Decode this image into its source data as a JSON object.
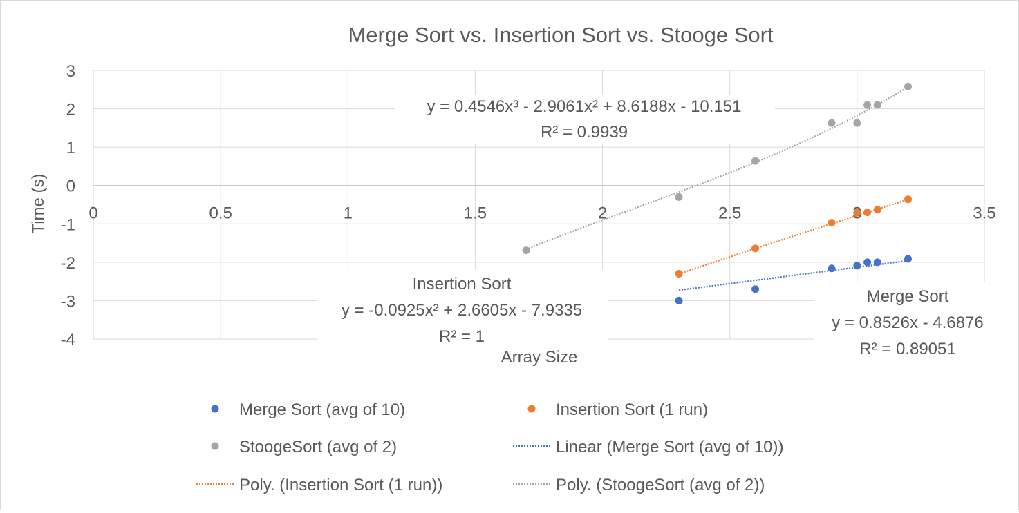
{
  "chart_data": {
    "type": "scatter",
    "title": "Merge Sort vs. Insertion Sort vs. Stooge Sort",
    "xlabel": "Array Size",
    "ylabel": "Time (s)",
    "xlim": [
      0,
      3.5
    ],
    "ylim": [
      -4,
      3
    ],
    "x_ticks": [
      "0",
      "0.5",
      "1",
      "1.5",
      "2",
      "2.5",
      "3",
      "3.5"
    ],
    "y_ticks": [
      "3",
      "2",
      "1",
      "0",
      "-1",
      "-2",
      "-3",
      "-4"
    ],
    "grid": true,
    "legend_position": "bottom",
    "series": [
      {
        "name": "Merge Sort (avg of 10)",
        "color": "#4472C4",
        "points": [
          [
            2.3,
            -3.0
          ],
          [
            2.6,
            -2.7
          ],
          [
            2.9,
            -2.16
          ],
          [
            3.0,
            -2.09
          ],
          [
            3.04,
            -2.0
          ],
          [
            3.08,
            -2.0
          ],
          [
            3.2,
            -1.91
          ]
        ]
      },
      {
        "name": "Insertion Sort (1 run)",
        "color": "#ED7D31",
        "points": [
          [
            2.3,
            -2.3
          ],
          [
            2.6,
            -1.64
          ],
          [
            2.9,
            -0.97
          ],
          [
            3.0,
            -0.71
          ],
          [
            3.04,
            -0.7
          ],
          [
            3.08,
            -0.63
          ],
          [
            3.2,
            -0.36
          ]
        ]
      },
      {
        "name": "StoogeSort (avg of 2)",
        "color": "#A5A5A5",
        "points": [
          [
            1.7,
            -1.69
          ],
          [
            2.3,
            -0.3
          ],
          [
            2.6,
            0.64
          ],
          [
            2.9,
            1.63
          ],
          [
            3.0,
            1.63
          ],
          [
            3.04,
            2.1
          ],
          [
            3.08,
            2.1
          ],
          [
            3.2,
            2.58
          ]
        ]
      }
    ],
    "trendlines": [
      {
        "name": "Linear  (Merge Sort (avg of 10))",
        "color": "#4472C4",
        "kind": "linear",
        "coefficients": [
          0.8526,
          -4.6876
        ],
        "x_range": [
          2.3,
          3.2
        ],
        "label": {
          "title": "Merge Sort",
          "equation": "y = 0.8526x - 4.6876",
          "r2": "R² = 0.89051"
        }
      },
      {
        "name": "Poly.  (Insertion Sort (1 run))",
        "color": "#ED7D31",
        "kind": "poly",
        "coefficients": [
          -0.0925,
          2.6605,
          -7.9335
        ],
        "x_range": [
          2.3,
          3.2
        ],
        "label": {
          "title": "Insertion Sort",
          "equation": "y = -0.0925x² + 2.6605x - 7.9335",
          "r2": "R² = 1"
        }
      },
      {
        "name": "Poly.  (StoogeSort (avg of 2))",
        "color": "#A5A5A5",
        "kind": "poly",
        "coefficients": [
          0.4546,
          -2.9061,
          8.6188,
          -10.151
        ],
        "x_range": [
          1.7,
          3.2
        ],
        "label": {
          "title": "",
          "equation": "y = 0.4546x³ - 2.9061x² + 8.6188x - 10.151",
          "r2": "R² = 0.9939"
        }
      }
    ],
    "legend": [
      {
        "label": "Merge Sort (avg of 10)",
        "marker": "dot",
        "color": "#4472C4"
      },
      {
        "label": "Insertion Sort (1 run)",
        "marker": "dot",
        "color": "#ED7D31"
      },
      {
        "label": "StoogeSort (avg of 2)",
        "marker": "dot",
        "color": "#A5A5A5"
      },
      {
        "label": "Linear  (Merge Sort (avg of 10))",
        "marker": "dotted-line",
        "color": "#4472C4"
      },
      {
        "label": "Poly.  (Insertion Sort (1 run))",
        "marker": "dotted-line",
        "color": "#ED7D31"
      },
      {
        "label": "Poly.  (StoogeSort (avg of 2))",
        "marker": "dotted-line",
        "color": "#A5A5A5"
      }
    ]
  }
}
